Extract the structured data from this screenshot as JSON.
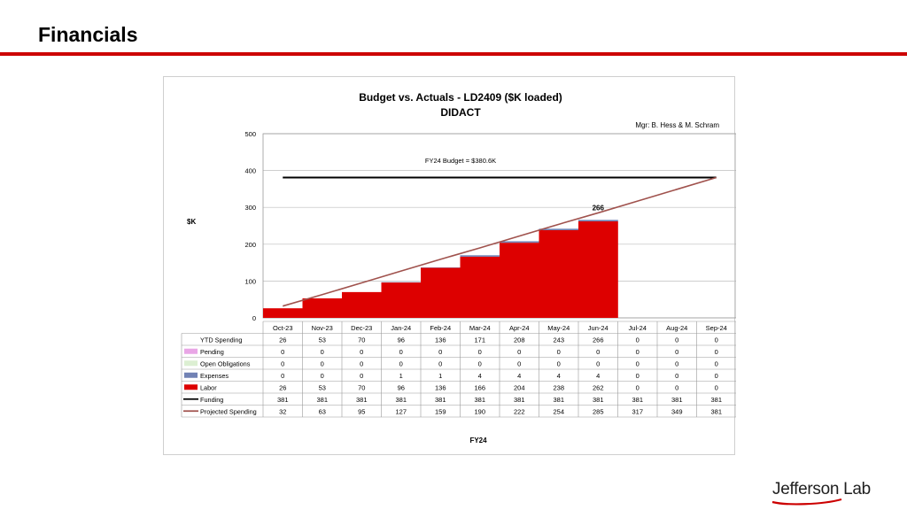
{
  "slide": {
    "title": "Financials",
    "accent_color": "#cc0000"
  },
  "logo": {
    "text": "Jefferson Lab",
    "swoosh_color": "#cc0000"
  },
  "chart_data": {
    "type": "area",
    "title": "Budget vs. Actuals - LD2409 ($K loaded)",
    "subtitle": "DIDACT",
    "manager_note": "Mgr: B. Hess & M. Schram",
    "ylabel": "$K",
    "xlabel": "FY24",
    "ylim": [
      0,
      500
    ],
    "yticks": [
      0,
      100,
      200,
      300,
      400,
      500
    ],
    "grid": true,
    "budget_annotation": "FY24 Budget = $380.6K",
    "last_actual_label": "266",
    "categories": [
      "Oct-23",
      "Nov-23",
      "Dec-23",
      "Jan-24",
      "Feb-24",
      "Mar-24",
      "Apr-24",
      "May-24",
      "Jun-24",
      "Jul-24",
      "Aug-24",
      "Sep-24"
    ],
    "series": [
      {
        "name": "YTD Spending",
        "key": "ytd",
        "color": "",
        "values": [
          26,
          53,
          70,
          96,
          136,
          171,
          208,
          243,
          266,
          0,
          0,
          0
        ]
      },
      {
        "name": "Pending",
        "key": "pending",
        "color": "#e9a6e6",
        "values": [
          0,
          0,
          0,
          0,
          0,
          0,
          0,
          0,
          0,
          0,
          0,
          0
        ]
      },
      {
        "name": "Open Obligations",
        "key": "open",
        "color": "#dcefd2",
        "values": [
          0,
          0,
          0,
          0,
          0,
          0,
          0,
          0,
          0,
          0,
          0,
          0
        ]
      },
      {
        "name": "Expenses",
        "key": "expenses",
        "color": "#7282b4",
        "values": [
          0,
          0,
          0,
          1,
          1,
          4,
          4,
          4,
          4,
          0,
          0,
          0
        ]
      },
      {
        "name": "Labor",
        "key": "labor",
        "color": "#dd0000",
        "values": [
          26,
          53,
          70,
          96,
          136,
          166,
          204,
          238,
          262,
          0,
          0,
          0
        ]
      },
      {
        "name": "Funding",
        "key": "funding",
        "color": "#000000",
        "values": [
          381,
          381,
          381,
          381,
          381,
          381,
          381,
          381,
          381,
          381,
          381,
          381
        ]
      },
      {
        "name": "Projected Spending",
        "key": "projected",
        "color": "#a0524d",
        "values": [
          32,
          63,
          95,
          127,
          159,
          190,
          222,
          254,
          285,
          317,
          349,
          381
        ]
      }
    ]
  }
}
